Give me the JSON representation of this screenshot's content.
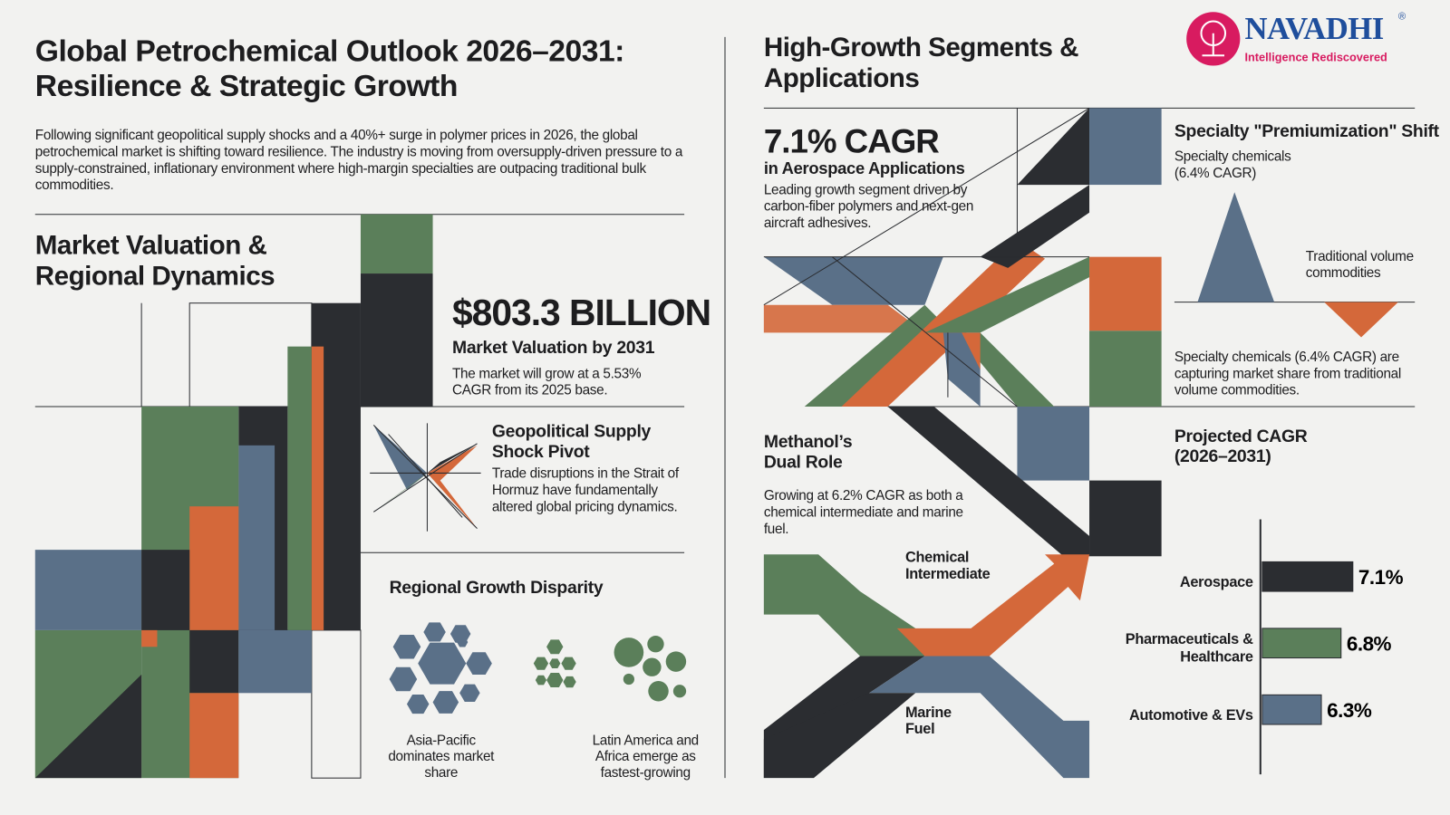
{
  "header": {
    "title": "Global Petrochemical Outlook 2026–2031: Resilience & Strategic Growth",
    "intro": "Following significant geopolitical supply shocks and a 40%+ surge in polymer prices in 2026, the global petrochemical market is shifting toward resilience. The industry is moving from oversupply-driven pressure to a supply-constrained, inflationary environment where high-margin specialties are outpacing traditional bulk commodities."
  },
  "logo": {
    "name": "NAVADHI",
    "mark": "®",
    "tagline": "Intelligence Rediscovered"
  },
  "market": {
    "heading": "Market Valuation & Regional Dynamics",
    "figure": "$803.3 BILLION",
    "label": "Market Valuation by 2031",
    "text": "The market will grow at a 5.53% CAGR from its 2025 base."
  },
  "geopolitical": {
    "heading": "Geopolitical Supply Shock Pivot",
    "text": "Trade disruptions in the Strait of Hormuz have fundamentally altered global pricing dynamics."
  },
  "regional": {
    "heading": "Regional Growth Disparity",
    "captions": [
      "Asia-Pacific dominates market share",
      "Latin America and Africa emerge as fastest-growing"
    ]
  },
  "segments": {
    "heading": "High-Growth Segments & Applications"
  },
  "aerospace": {
    "figure": "7.1% CAGR",
    "label": "in Aerospace Applications",
    "text": "Leading growth segment driven by carbon-fiber polymers and next-gen aircraft adhesives."
  },
  "specialty": {
    "heading": "Specialty \"Premiumization\" Shift",
    "labels": [
      "Specialty chemicals (6.4% CAGR)",
      "Traditional volume commodities"
    ],
    "text": "Specialty chemicals (6.4% CAGR) are capturing market share from traditional volume commodities."
  },
  "methanol": {
    "heading": "Methanol’s Dual Role",
    "text": "Growing at 6.2% CAGR as both a chemical intermediate and marine fuel.",
    "labels": [
      "Chemical Intermediate",
      "Marine Fuel"
    ]
  },
  "chart_data": {
    "type": "hbar",
    "title": "Projected CAGR (2026–2031)",
    "categories": [
      "Aerospace",
      "Pharmaceuticals & Healthcare",
      "Automotive & EVs"
    ],
    "values": [
      7.1,
      6.8,
      6.3
    ],
    "value_labels": [
      "7.1%",
      "6.8%",
      "6.3%"
    ],
    "colors": [
      "#2b2d31",
      "#5b7f5a",
      "#5a7088"
    ],
    "xlim": [
      4.8,
      7.5
    ]
  }
}
